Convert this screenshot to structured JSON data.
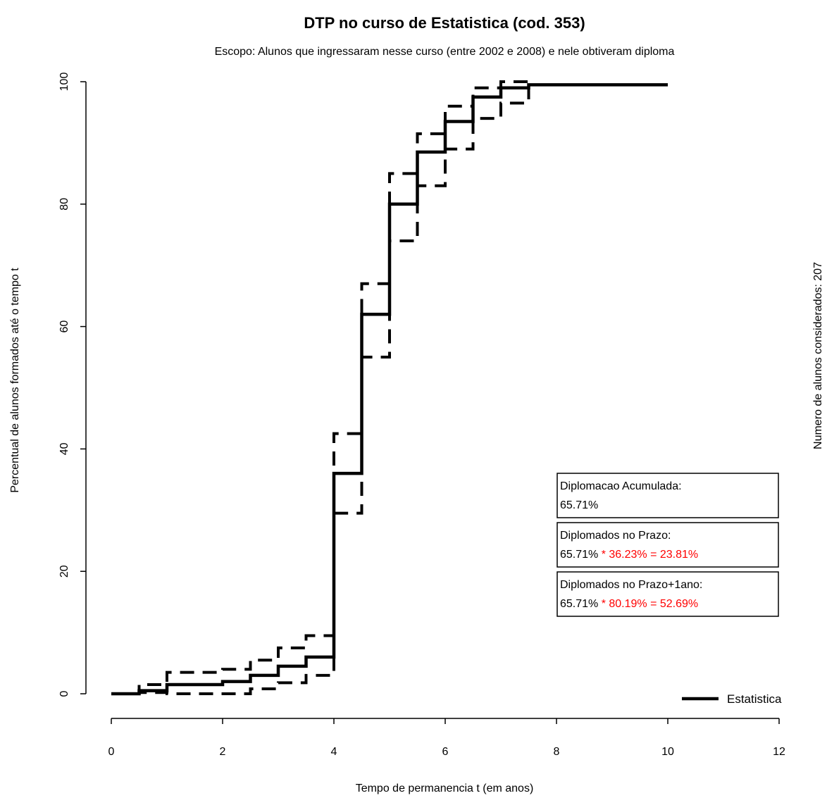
{
  "chart_data": {
    "type": "line",
    "title": "DTP no curso de Estatistica (cod. 353)",
    "subtitle": "Escopo: Alunos que ingressaram nesse curso (entre 2002 e 2008) e nele obtiveram diploma",
    "xlabel": "Tempo de permanencia t (em anos)",
    "ylabel": "Percentual de alunos formados até o tempo t",
    "right_label": "Numero de alunos considerados: 207",
    "xlim": [
      0,
      12
    ],
    "ylim": [
      0,
      100
    ],
    "x_ticks": [
      0,
      2,
      4,
      6,
      8,
      10,
      12
    ],
    "y_ticks": [
      0,
      20,
      40,
      60,
      80,
      100
    ],
    "grid": false,
    "legend": {
      "position": "bottom-right",
      "entries": [
        "Estatistica"
      ]
    },
    "series": [
      {
        "name": "Estatistica",
        "style": "solid",
        "step": true,
        "points": [
          [
            0,
            0
          ],
          [
            0.5,
            0.5
          ],
          [
            1,
            1.5
          ],
          [
            2,
            2
          ],
          [
            2.5,
            3
          ],
          [
            3,
            4.5
          ],
          [
            3.5,
            6
          ],
          [
            4,
            36
          ],
          [
            4.5,
            62
          ],
          [
            5,
            80
          ],
          [
            5.5,
            88.5
          ],
          [
            6,
            93.5
          ],
          [
            6.5,
            97.5
          ],
          [
            7,
            99
          ],
          [
            7.5,
            99.5
          ],
          [
            10,
            99.5
          ]
        ]
      },
      {
        "style": "dashed",
        "step": true,
        "points": [
          [
            0,
            0
          ],
          [
            0.5,
            1.5
          ],
          [
            1,
            3.5
          ],
          [
            2,
            4
          ],
          [
            2.5,
            5.5
          ],
          [
            3,
            7.5
          ],
          [
            3.5,
            9.5
          ],
          [
            4,
            42.5
          ],
          [
            4.5,
            67
          ],
          [
            5,
            85
          ],
          [
            5.5,
            91.5
          ],
          [
            6,
            96
          ],
          [
            6.5,
            99
          ],
          [
            7,
            100
          ],
          [
            7.5,
            100
          ]
        ]
      },
      {
        "style": "dashed",
        "step": true,
        "points": [
          [
            0,
            0
          ],
          [
            0.5,
            0.2
          ],
          [
            1,
            0
          ],
          [
            2,
            0
          ],
          [
            2.5,
            0.8
          ],
          [
            3,
            1.8
          ],
          [
            3.5,
            3
          ],
          [
            4,
            29.5
          ],
          [
            4.5,
            55
          ],
          [
            5,
            74
          ],
          [
            5.5,
            83
          ],
          [
            6,
            89
          ],
          [
            6.5,
            94
          ],
          [
            7,
            96.5
          ],
          [
            7.5,
            99.5
          ]
        ]
      }
    ],
    "annotations": [
      {
        "label": "Diplomacao Acumulada:",
        "value": "65.71%",
        "extra": ""
      },
      {
        "label": "Diplomados no Prazo:",
        "value": "65.71%",
        "extra": " * 36.23% = 23.81%"
      },
      {
        "label": "Diplomados no Prazo+1ano:",
        "value": "65.71%",
        "extra": " * 80.19% = 52.69%"
      }
    ],
    "colors": {
      "line": "#000000",
      "highlight": "#ff0000",
      "background": "#ffffff"
    }
  }
}
